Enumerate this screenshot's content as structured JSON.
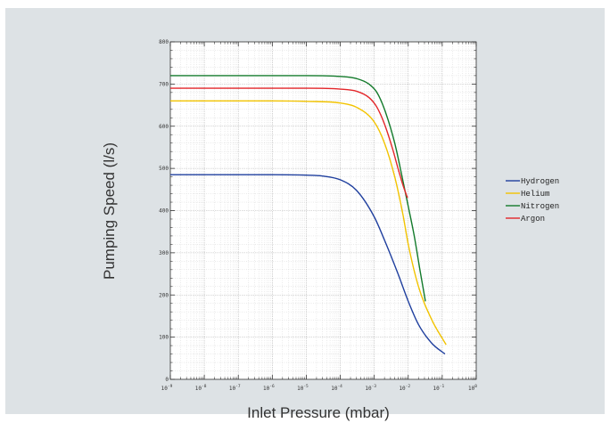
{
  "chart_data": {
    "type": "line",
    "title": "",
    "xlabel": "Inlet Pressure (mbar)",
    "ylabel": "Pumping Speed (l/s)",
    "xscale": "log",
    "xlim": [
      1e-09,
      1
    ],
    "ylim": [
      0,
      800
    ],
    "x_tick_labels": [
      {
        "base": "10",
        "exp": "-9"
      },
      {
        "base": "10",
        "exp": "-8"
      },
      {
        "base": "10",
        "exp": "-7"
      },
      {
        "base": "10",
        "exp": "-6"
      },
      {
        "base": "10",
        "exp": "-5"
      },
      {
        "base": "10",
        "exp": "-4"
      },
      {
        "base": "10",
        "exp": "-3"
      },
      {
        "base": "10",
        "exp": "-2"
      },
      {
        "base": "10",
        "exp": "-1"
      },
      {
        "base": "10",
        "exp": "0"
      }
    ],
    "y_ticks": [
      0,
      100,
      200,
      300,
      400,
      500,
      600,
      700,
      800
    ],
    "y_tick_labels": [
      "0",
      "100",
      "200",
      "300",
      "400",
      "500",
      "600",
      "700",
      "800"
    ],
    "grid": true,
    "legend_position": "right",
    "series": [
      {
        "name": "Hydrogen",
        "color": "#1f3f9e",
        "x": [
          1e-09,
          1e-06,
          1e-05,
          3e-05,
          0.0001,
          0.0003,
          0.001,
          0.002,
          0.005,
          0.01,
          0.02,
          0.05,
          0.12
        ],
        "y": [
          485,
          485,
          484,
          482,
          473,
          448,
          385,
          330,
          250,
          185,
          130,
          85,
          60
        ]
      },
      {
        "name": "Helium",
        "color": "#f2c300",
        "x": [
          1e-09,
          1e-06,
          1e-05,
          0.0001,
          0.0003,
          0.001,
          0.002,
          0.004,
          0.007,
          0.01,
          0.02,
          0.05,
          0.13
        ],
        "y": [
          660,
          660,
          659,
          655,
          645,
          610,
          560,
          480,
          390,
          320,
          220,
          140,
          82
        ]
      },
      {
        "name": "Nitrogen",
        "color": "#137a2b",
        "x": [
          1e-09,
          1e-06,
          1e-05,
          0.0001,
          0.0003,
          0.0007,
          0.0012,
          0.002,
          0.004,
          0.007,
          0.01,
          0.015,
          0.022,
          0.032
        ],
        "y": [
          720,
          720,
          720,
          718,
          713,
          700,
          680,
          640,
          560,
          470,
          410,
          340,
          260,
          185
        ]
      },
      {
        "name": "Argon",
        "color": "#e3262a",
        "x": [
          1e-09,
          1e-06,
          1e-05,
          0.0001,
          0.0003,
          0.0007,
          0.0012,
          0.002,
          0.0035,
          0.005,
          0.007,
          0.0095
        ],
        "y": [
          690,
          690,
          690,
          688,
          683,
          668,
          645,
          605,
          545,
          500,
          460,
          430
        ]
      }
    ]
  }
}
